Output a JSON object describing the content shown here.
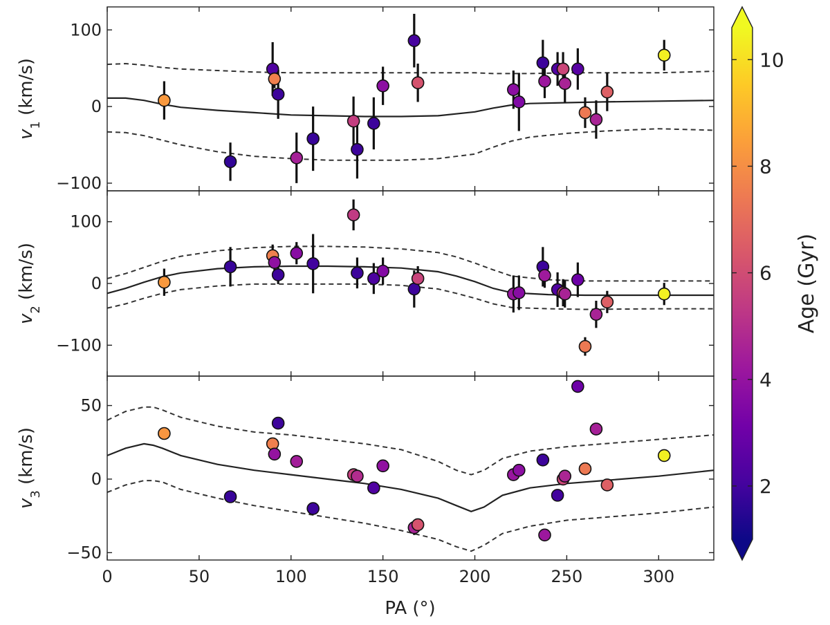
{
  "chart_data": {
    "type": "scatter",
    "x_axis": {
      "label": "PA (°)",
      "lim": [
        0,
        330
      ],
      "ticks": [
        0,
        50,
        100,
        150,
        200,
        250,
        300
      ]
    },
    "colorbar": {
      "label": "Age (Gyr)",
      "range": [
        1,
        10.6
      ],
      "ticks": [
        2,
        4,
        6,
        8,
        10
      ],
      "colormap": [
        "#0d0887",
        "#46039f",
        "#7201a8",
        "#9c179e",
        "#bd3786",
        "#d8576b",
        "#ed7953",
        "#fb9f3a",
        "#fdca26",
        "#f0f921"
      ]
    },
    "panels": [
      {
        "id": "v1",
        "ylabel_var": "v",
        "ylabel_sub": "1",
        "ylabel_unit": " (km/s)",
        "ylim": [
          -110,
          130
        ],
        "yticks": [
          -100,
          0,
          100
        ],
        "ytick_labels": [
          "−100",
          "0",
          "100"
        ],
        "model": {
          "x": [
            0,
            10,
            20,
            30,
            40,
            60,
            80,
            100,
            120,
            140,
            160,
            180,
            200,
            210,
            220,
            230,
            250,
            270,
            300,
            330
          ],
          "mean": [
            11,
            11,
            8,
            3,
            -1,
            -5,
            -8,
            -11,
            -12,
            -13,
            -13,
            -12,
            -7,
            -2,
            2,
            4,
            5,
            6,
            7,
            8
          ],
          "upper": [
            55,
            56,
            54,
            51,
            49,
            47,
            45,
            44,
            44,
            44,
            44,
            44,
            44,
            43,
            43,
            43,
            44,
            44,
            44,
            46
          ],
          "lower": [
            -33,
            -34,
            -38,
            -44,
            -50,
            -59,
            -65,
            -68,
            -70,
            -70,
            -70,
            -68,
            -62,
            -53,
            -45,
            -40,
            -35,
            -32,
            -29,
            -31
          ]
        },
        "points": [
          {
            "pa": 31,
            "v": 8,
            "err": 25,
            "age": 8.3
          },
          {
            "pa": 67,
            "v": -72,
            "err": 25,
            "age": 1.7
          },
          {
            "pa": 90,
            "v": 49,
            "err": 35,
            "age": 2.3
          },
          {
            "pa": 91,
            "v": 36,
            "err": 12,
            "age": 7.6
          },
          {
            "pa": 93,
            "v": 16,
            "err": 32,
            "age": 1.9
          },
          {
            "pa": 103,
            "v": -67,
            "err": 33,
            "age": 4.5
          },
          {
            "pa": 112,
            "v": -42,
            "err": 42,
            "age": 1.8
          },
          {
            "pa": 134,
            "v": -19,
            "err": 32,
            "age": 5.5
          },
          {
            "pa": 136,
            "v": -56,
            "err": 38,
            "age": 1.9
          },
          {
            "pa": 145,
            "v": -22,
            "err": 34,
            "age": 1.9
          },
          {
            "pa": 150,
            "v": 27,
            "err": 25,
            "age": 3.8
          },
          {
            "pa": 167,
            "v": 86,
            "err": 35,
            "age": 2.1
          },
          {
            "pa": 169,
            "v": 31,
            "err": 25,
            "age": 6.2
          },
          {
            "pa": 221,
            "v": 22,
            "err": 25,
            "age": 3.8
          },
          {
            "pa": 224,
            "v": 6,
            "err": 38,
            "age": 3.5
          },
          {
            "pa": 237,
            "v": 57,
            "err": 30,
            "age": 1.9
          },
          {
            "pa": 238,
            "v": 33,
            "err": 22,
            "age": 4.2
          },
          {
            "pa": 245,
            "v": 49,
            "err": 22,
            "age": 2.3
          },
          {
            "pa": 248,
            "v": 49,
            "err": 22,
            "age": 5.8
          },
          {
            "pa": 249,
            "v": 30,
            "err": 25,
            "age": 4.6
          },
          {
            "pa": 256,
            "v": 49,
            "err": 27,
            "age": 2.5
          },
          {
            "pa": 260,
            "v": -8,
            "err": 20,
            "age": 7.4
          },
          {
            "pa": 266,
            "v": -17,
            "err": 25,
            "age": 4.6
          },
          {
            "pa": 272,
            "v": 19,
            "err": 25,
            "age": 6.6
          },
          {
            "pa": 303,
            "v": 67,
            "err": 20,
            "age": 10.4
          }
        ]
      },
      {
        "id": "v2",
        "ylabel_var": "v",
        "ylabel_sub": "2",
        "ylabel_unit": " (km/s)",
        "ylim": [
          -150,
          150
        ],
        "yticks": [
          -100,
          0,
          100
        ],
        "ytick_labels": [
          "−100",
          "0",
          "100"
        ],
        "model": {
          "x": [
            0,
            10,
            20,
            30,
            40,
            60,
            80,
            100,
            120,
            140,
            160,
            180,
            190,
            200,
            210,
            220,
            240,
            260,
            300,
            330
          ],
          "mean": [
            -16,
            -8,
            2,
            11,
            17,
            24,
            27,
            28,
            28,
            27,
            25,
            19,
            12,
            3,
            -8,
            -15,
            -18,
            -19,
            -19,
            -19
          ],
          "upper": [
            8,
            16,
            26,
            36,
            44,
            53,
            58,
            60,
            60,
            59,
            56,
            50,
            43,
            33,
            22,
            12,
            6,
            4,
            4,
            4
          ],
          "lower": [
            -40,
            -33,
            -24,
            -16,
            -10,
            -4,
            -1,
            -1,
            -1,
            -1,
            -3,
            -9,
            -16,
            -24,
            -33,
            -39,
            -41,
            -42,
            -41,
            -41
          ]
        },
        "points": [
          {
            "pa": 31,
            "v": 2,
            "err": 22,
            "age": 8.3
          },
          {
            "pa": 67,
            "v": 27,
            "err": 32,
            "age": 1.8
          },
          {
            "pa": 90,
            "v": 45,
            "err": 18,
            "age": 7.6
          },
          {
            "pa": 91,
            "v": 34,
            "err": 18,
            "age": 3.9
          },
          {
            "pa": 93,
            "v": 14,
            "err": 15,
            "age": 1.9
          },
          {
            "pa": 103,
            "v": 49,
            "err": 18,
            "age": 3.7
          },
          {
            "pa": 112,
            "v": 32,
            "err": 48,
            "age": 2.0
          },
          {
            "pa": 134,
            "v": 111,
            "err": 25,
            "age": 5.4
          },
          {
            "pa": 136,
            "v": 17,
            "err": 25,
            "age": 1.9
          },
          {
            "pa": 145,
            "v": 8,
            "err": 25,
            "age": 2.2
          },
          {
            "pa": 150,
            "v": 20,
            "err": 22,
            "age": 3.6
          },
          {
            "pa": 167,
            "v": -9,
            "err": 30,
            "age": 1.9
          },
          {
            "pa": 169,
            "v": 8,
            "err": 20,
            "age": 5.7
          },
          {
            "pa": 221,
            "v": -17,
            "err": 30,
            "age": 4.1
          },
          {
            "pa": 224,
            "v": -15,
            "err": 28,
            "age": 3.7
          },
          {
            "pa": 237,
            "v": 27,
            "err": 32,
            "age": 1.9
          },
          {
            "pa": 238,
            "v": 13,
            "err": 20,
            "age": 4.3
          },
          {
            "pa": 245,
            "v": -10,
            "err": 28,
            "age": 2.3
          },
          {
            "pa": 248,
            "v": -15,
            "err": 22,
            "age": 6.0
          },
          {
            "pa": 249,
            "v": -17,
            "err": 22,
            "age": 4.6
          },
          {
            "pa": 256,
            "v": 6,
            "err": 28,
            "age": 3.0
          },
          {
            "pa": 260,
            "v": -102,
            "err": 15,
            "age": 7.4
          },
          {
            "pa": 266,
            "v": -50,
            "err": 22,
            "age": 4.6
          },
          {
            "pa": 272,
            "v": -30,
            "err": 18,
            "age": 6.6
          },
          {
            "pa": 303,
            "v": -17,
            "err": 18,
            "age": 10.4
          }
        ]
      },
      {
        "id": "v3",
        "ylabel_var": "v",
        "ylabel_sub": "3",
        "ylabel_unit": " (km/s)",
        "ylim": [
          -55,
          70
        ],
        "yticks": [
          -50,
          0,
          50
        ],
        "ytick_labels": [
          "−50",
          "0",
          "50"
        ],
        "model": {
          "x": [
            0,
            10,
            20,
            25,
            30,
            40,
            60,
            80,
            100,
            120,
            140,
            160,
            180,
            190,
            198,
            205,
            215,
            230,
            250,
            270,
            300,
            330
          ],
          "mean": [
            16,
            21,
            24,
            23,
            21,
            16,
            10,
            6,
            3,
            0,
            -3,
            -7,
            -13,
            -18,
            -22,
            -19,
            -11,
            -6,
            -3,
            -1,
            2,
            6
          ],
          "upper": [
            40,
            46,
            49,
            49,
            47,
            42,
            36,
            32,
            30,
            27,
            24,
            20,
            12,
            6,
            3,
            6,
            14,
            19,
            22,
            24,
            27,
            30
          ],
          "lower": [
            -9,
            -4,
            -1,
            -1,
            -2,
            -7,
            -13,
            -18,
            -22,
            -26,
            -30,
            -35,
            -41,
            -46,
            -49,
            -45,
            -37,
            -32,
            -28,
            -26,
            -23,
            -19
          ]
        },
        "points": [
          {
            "pa": 31,
            "v": 31,
            "err": 4,
            "age": 8.2
          },
          {
            "pa": 67,
            "v": -12,
            "err": 0,
            "age": 1.8
          },
          {
            "pa": 90,
            "v": 24,
            "err": 4,
            "age": 7.6
          },
          {
            "pa": 91,
            "v": 17,
            "err": 0,
            "age": 4.0
          },
          {
            "pa": 93,
            "v": 38,
            "err": 0,
            "age": 1.9
          },
          {
            "pa": 103,
            "v": 12,
            "err": 0,
            "age": 4.4
          },
          {
            "pa": 112,
            "v": -20,
            "err": 0,
            "age": 1.9
          },
          {
            "pa": 134,
            "v": 3,
            "err": 0,
            "age": 5.6
          },
          {
            "pa": 136,
            "v": 2,
            "err": 0,
            "age": 4.9
          },
          {
            "pa": 145,
            "v": -6,
            "err": 0,
            "age": 2.3
          },
          {
            "pa": 150,
            "v": 9,
            "err": 0,
            "age": 3.9
          },
          {
            "pa": 167,
            "v": -33,
            "err": 5,
            "age": 4.6
          },
          {
            "pa": 169,
            "v": -31,
            "err": 4,
            "age": 6.2
          },
          {
            "pa": 221,
            "v": 3,
            "err": 0,
            "age": 4.1
          },
          {
            "pa": 224,
            "v": 6,
            "err": 0,
            "age": 3.8
          },
          {
            "pa": 237,
            "v": 13,
            "err": 0,
            "age": 1.9
          },
          {
            "pa": 238,
            "v": -38,
            "err": 0,
            "age": 4.2
          },
          {
            "pa": 245,
            "v": -11,
            "err": 0,
            "age": 2.0
          },
          {
            "pa": 248,
            "v": 0,
            "err": 0,
            "age": 5.8
          },
          {
            "pa": 249,
            "v": 2,
            "err": 0,
            "age": 4.7
          },
          {
            "pa": 256,
            "v": 63,
            "err": 0,
            "age": 3.0
          },
          {
            "pa": 260,
            "v": 7,
            "err": 0,
            "age": 7.4
          },
          {
            "pa": 266,
            "v": 34,
            "err": 0,
            "age": 4.5
          },
          {
            "pa": 272,
            "v": -4,
            "err": 0,
            "age": 6.6
          },
          {
            "pa": 303,
            "v": 16,
            "err": 0,
            "age": 10.4
          }
        ]
      }
    ]
  }
}
